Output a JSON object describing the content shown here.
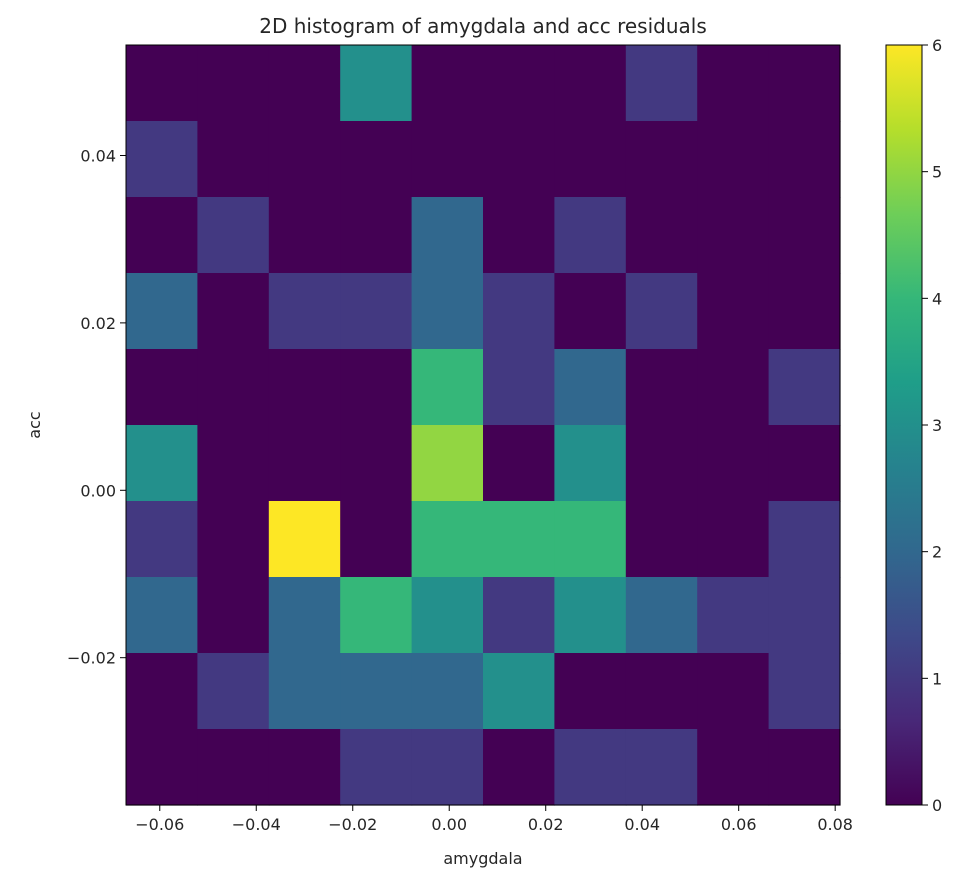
{
  "chart_data": {
    "type": "heatmap",
    "title": "2D histogram of amygdala and acc residuals",
    "xlabel": "amygdala",
    "ylabel": "acc",
    "xlim": [
      -0.067,
      0.081
    ],
    "ylim": [
      -0.0376,
      0.0532
    ],
    "x_ticks": [
      -0.06,
      -0.04,
      -0.02,
      0.0,
      0.02,
      0.04,
      0.06,
      0.08
    ],
    "x_tick_labels": [
      "−0.06",
      "−0.04",
      "−0.02",
      "0.00",
      "0.02",
      "0.04",
      "0.06",
      "0.08"
    ],
    "y_ticks": [
      -0.02,
      0.0,
      0.02,
      0.04
    ],
    "y_tick_labels": [
      "−0.02",
      "0.00",
      "0.02",
      "0.04"
    ],
    "colormap": "viridis",
    "colorbar": {
      "min": 0,
      "max": 6,
      "ticks": [
        0,
        1,
        2,
        3,
        4,
        5,
        6
      ],
      "tick_labels": [
        "0",
        "1",
        "2",
        "3",
        "4",
        "5",
        "6"
      ]
    },
    "bins_x": 10,
    "bins_y": 10,
    "counts_top_to_bottom": [
      [
        0,
        0,
        0,
        3,
        0,
        0,
        0,
        1,
        0,
        0
      ],
      [
        1,
        0,
        0,
        0,
        0,
        0,
        0,
        0,
        0,
        0
      ],
      [
        0,
        1,
        0,
        0,
        2,
        0,
        1,
        0,
        0,
        0
      ],
      [
        2,
        0,
        1,
        1,
        2,
        1,
        0,
        1,
        0,
        0
      ],
      [
        0,
        0,
        0,
        0,
        4,
        1,
        2,
        0,
        0,
        1
      ],
      [
        3,
        0,
        0,
        0,
        5,
        0,
        3,
        0,
        0,
        0
      ],
      [
        1,
        0,
        6,
        0,
        4,
        4,
        4,
        0,
        0,
        1
      ],
      [
        2,
        0,
        2,
        4,
        3,
        1,
        3,
        2,
        1,
        1
      ],
      [
        0,
        1,
        2,
        2,
        2,
        3,
        0,
        0,
        0,
        1
      ],
      [
        0,
        0,
        0,
        1,
        1,
        0,
        1,
        1,
        0,
        0
      ]
    ]
  }
}
